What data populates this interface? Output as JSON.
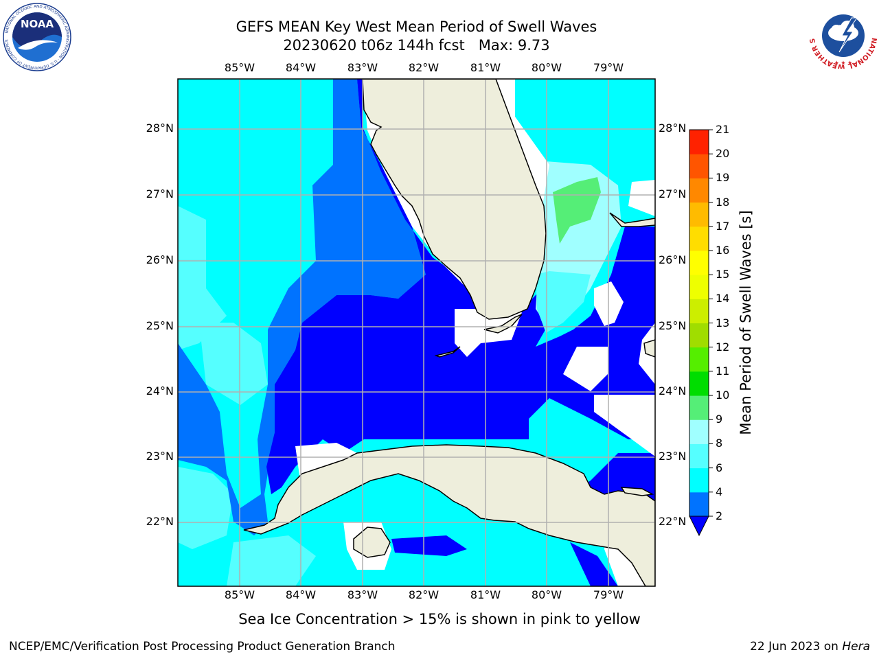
{
  "title": {
    "line1": "GEFS MEAN Key West Mean Period of Swell Waves",
    "line2": "20230620 t06z 144h fcst   Max: 9.73"
  },
  "map": {
    "lon_labels": [
      "85°W",
      "84°W",
      "83°W",
      "82°W",
      "81°W",
      "80°W",
      "79°W"
    ],
    "lat_labels": [
      "28°N",
      "27°N",
      "26°N",
      "25°N",
      "24°N",
      "23°N",
      "22°N"
    ],
    "colors": {
      "land": "#eeeedc",
      "coast": "#000000",
      "grid": "#b0b0b0",
      "band_2_4": "#0000ff",
      "band_4_6": "#0073ff",
      "band_6_8": "#00ffff",
      "band_8_9": "#55ffff",
      "band_9_10": "#a0ffff",
      "band_10_11": "#55ee77"
    }
  },
  "colorbar": {
    "label": "Mean Period of Swell Waves [s]",
    "ticks": [
      "2",
      "4",
      "6",
      "8",
      "9",
      "10",
      "11",
      "12",
      "13",
      "14",
      "15",
      "16",
      "17",
      "18",
      "19",
      "20",
      "21"
    ],
    "colors": [
      "#0000ff",
      "#0073ff",
      "#00ffff",
      "#55ffff",
      "#a0ffff",
      "#55ee77",
      "#00dd00",
      "#55ee00",
      "#a0dd00",
      "#ccee00",
      "#eeff00",
      "#ffff00",
      "#ffdd00",
      "#ffbb00",
      "#ff8800",
      "#ff5500",
      "#ff2200",
      "#ff0000"
    ]
  },
  "note": "Sea Ice Concentration > 15% is shown in pink to yellow",
  "footer": {
    "left": "NCEP/EMC/Verification Post Processing Product Generation Branch",
    "date": "22 Jun 2023 on ",
    "host": "Hera"
  },
  "logos": {
    "noaa": "NOAA",
    "noaa_ring": "NATIONAL OCEANIC AND ATMOSPHERIC ADMINISTRATION · U.S. DEPARTMENT OF COMMERCE",
    "nws_ring": "NATIONAL WEATHER SERVICE"
  }
}
